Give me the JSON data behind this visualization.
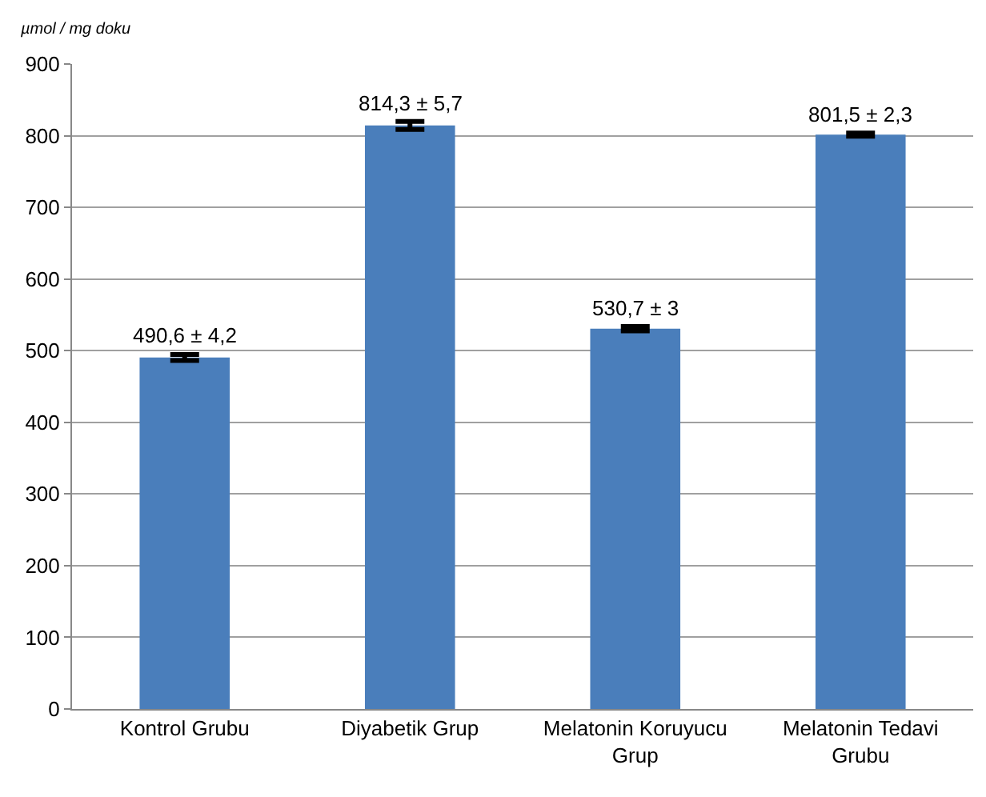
{
  "chart_data": {
    "type": "bar",
    "ylabel": "µmol / mg doku",
    "categories": [
      "Kontrol Grubu",
      "Diyabetik Grup",
      "Melatonin Koruyucu Grup",
      "Melatonin Tedavi Grubu"
    ],
    "values": [
      490.6,
      814.3,
      530.7,
      801.5
    ],
    "errors": [
      4.2,
      5.7,
      3,
      2.3
    ],
    "value_labels": [
      "490,6 ± 4,2",
      "814,3 ± 5,7",
      "530,7 ± 3",
      "801,5 ± 2,3"
    ],
    "color": "#4a7ebb",
    "ylim": [
      0,
      900
    ],
    "yticks": [
      0,
      100,
      200,
      300,
      400,
      500,
      600,
      700,
      800,
      900
    ],
    "grid": "y",
    "legend": false
  }
}
